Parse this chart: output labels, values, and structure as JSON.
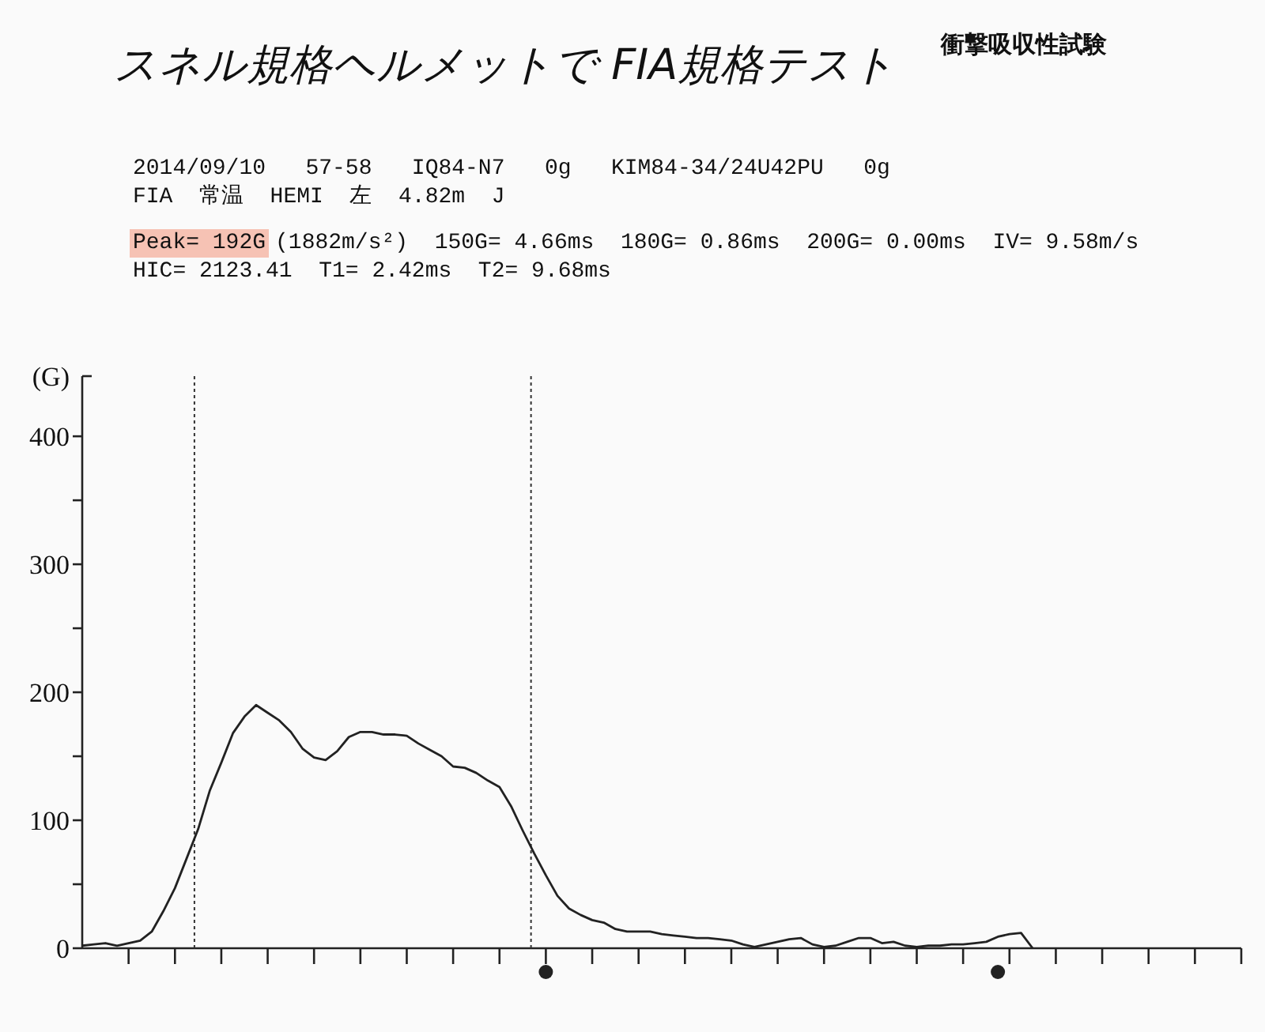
{
  "chart_data": {
    "type": "line",
    "title": "スネル規格ヘルメットで FIA規格テスト",
    "subtitle": "衝撃吸収性試験",
    "ylabel": "(G)",
    "annotations": [
      "2014/09/10   57-58   IQ84-N7   0g   KIM84-34/24U42PU   0g",
      "FIA  常温  HEMI  左  4.82m  J",
      "Peak= 192G",
      "(1882m/s²)  150G= 4.66ms  180G= 0.86ms  200G= 0.00ms  IV= 9.58m/s",
      "HIC= 2123.41  T1= 2.42ms  T2= 9.68ms"
    ],
    "categories": [
      null,
      null,
      null,
      null,
      null,
      null,
      null,
      null,
      null,
      null,
      null,
      null,
      null,
      null,
      null,
      null,
      null,
      null,
      null,
      null,
      null,
      null,
      null,
      null,
      null,
      null,
      null,
      null,
      null,
      null,
      null,
      null,
      null,
      null,
      null,
      null,
      null,
      null,
      null,
      null,
      null,
      null,
      null,
      null,
      null,
      null,
      null,
      null,
      null,
      null,
      null,
      null,
      null,
      null,
      null,
      null,
      null,
      null,
      null,
      null,
      null,
      null,
      null,
      null,
      null,
      null,
      null,
      null,
      null,
      null,
      null,
      null,
      null,
      null,
      null,
      null,
      null,
      null,
      null,
      null,
      null,
      null,
      null,
      null,
      null,
      null,
      null,
      null,
      null,
      null,
      null,
      null,
      null,
      null,
      null,
      null,
      null,
      null,
      null,
      null,
      null
    ],
    "ylim": [
      0,
      447
    ],
    "yticks": [
      0,
      {
        "value": 50,
        "label": null
      },
      100,
      {
        "value": 150,
        "label": null
      },
      200,
      {
        "value": 250,
        "label": null
      },
      300,
      {
        "value": 350,
        "label": null
      },
      400
    ],
    "series": [
      {
        "color": "#222222",
        "line_style": "solid",
        "values": [
          2,
          3,
          4,
          2,
          4,
          6,
          13,
          29,
          47,
          70,
          93,
          123,
          145,
          168,
          181,
          190,
          184,
          178,
          169,
          156,
          149,
          147,
          154,
          165,
          169,
          169,
          167,
          167,
          166,
          160,
          155,
          150,
          142,
          141,
          137,
          131,
          126,
          111,
          92,
          74,
          57,
          41,
          31,
          26,
          22,
          20,
          15,
          13,
          13,
          13,
          11,
          10,
          9,
          8,
          8,
          7,
          6,
          3,
          1,
          3,
          5,
          7,
          8,
          3,
          1,
          2,
          5,
          8,
          8,
          4,
          5,
          2,
          1,
          2,
          2,
          3,
          3,
          4,
          5,
          9,
          11,
          12,
          0,
          null,
          null,
          null,
          null,
          null,
          null,
          null,
          null,
          null,
          null,
          null,
          null,
          null,
          null,
          null,
          null,
          null,
          null
        ]
      }
    ],
    "grid": false
  }
}
